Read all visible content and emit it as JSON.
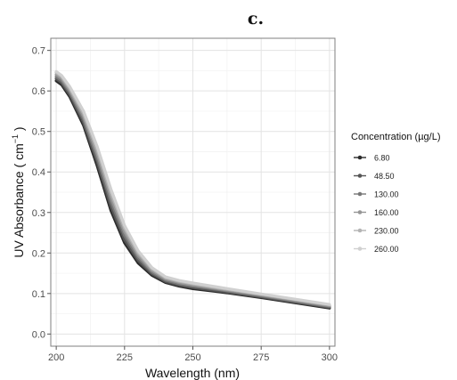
{
  "chart_data": {
    "type": "line",
    "panel_label": "c.",
    "xlabel": "Wavelength (nm)",
    "ylabel": "UV Absorbance ( cm",
    "ylabel_superscript": "−1",
    "ylabel_close": " )",
    "xlim": [
      198,
      302
    ],
    "ylim": [
      -0.03,
      0.73
    ],
    "xticks": [
      200,
      225,
      250,
      275,
      300
    ],
    "yticks": [
      0.0,
      0.1,
      0.2,
      0.3,
      0.4,
      0.5,
      0.6,
      0.7
    ],
    "ytick_labels": [
      "0.0",
      "0.1",
      "0.2",
      "0.3",
      "0.4",
      "0.5",
      "0.6",
      "0.7"
    ],
    "grid": true,
    "legend_title": "Concentration (µg/L)",
    "legend_position": "right",
    "x": [
      200,
      202,
      205,
      210,
      215,
      220,
      225,
      230,
      235,
      240,
      245,
      250,
      260,
      275,
      300
    ],
    "series": [
      {
        "name": "6.80",
        "color": "#2b2b2b",
        "values": [
          0.625,
          0.615,
          0.585,
          0.515,
          0.415,
          0.305,
          0.225,
          0.175,
          0.145,
          0.127,
          0.118,
          0.112,
          0.104,
          0.09,
          0.064
        ]
      },
      {
        "name": "48.50",
        "color": "#555555",
        "values": [
          0.63,
          0.62,
          0.59,
          0.522,
          0.425,
          0.315,
          0.233,
          0.181,
          0.149,
          0.13,
          0.121,
          0.115,
          0.106,
          0.092,
          0.066
        ]
      },
      {
        "name": "130.00",
        "color": "#777777",
        "values": [
          0.635,
          0.625,
          0.596,
          0.53,
          0.435,
          0.327,
          0.243,
          0.188,
          0.153,
          0.133,
          0.124,
          0.118,
          0.109,
          0.094,
          0.068
        ]
      },
      {
        "name": "160.00",
        "color": "#969696",
        "values": [
          0.64,
          0.63,
          0.601,
          0.537,
          0.445,
          0.338,
          0.252,
          0.194,
          0.157,
          0.136,
          0.127,
          0.121,
          0.111,
          0.096,
          0.07
        ]
      },
      {
        "name": "230.00",
        "color": "#b4b4b4",
        "values": [
          0.645,
          0.635,
          0.606,
          0.544,
          0.455,
          0.349,
          0.261,
          0.2,
          0.161,
          0.139,
          0.13,
          0.124,
          0.113,
          0.098,
          0.072
        ]
      },
      {
        "name": "260.00",
        "color": "#d0d0d0",
        "values": [
          0.648,
          0.638,
          0.61,
          0.55,
          0.463,
          0.358,
          0.268,
          0.205,
          0.164,
          0.141,
          0.132,
          0.126,
          0.115,
          0.099,
          0.073
        ]
      }
    ]
  }
}
